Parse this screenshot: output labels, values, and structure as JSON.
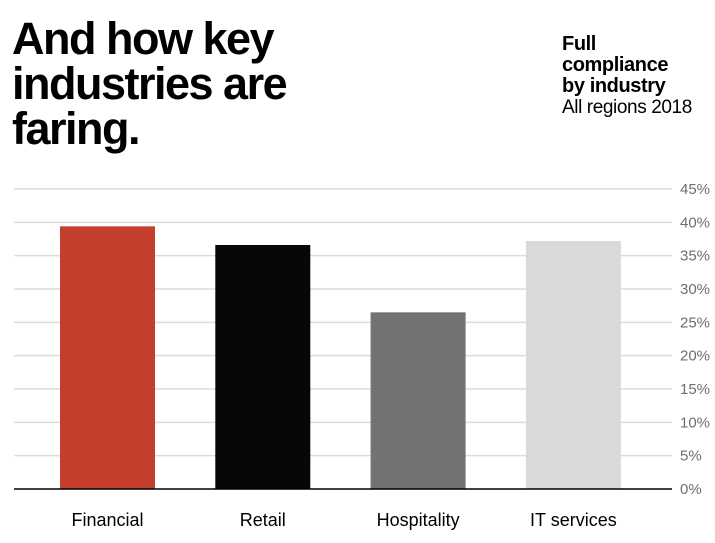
{
  "headline": {
    "lines": [
      "And how key",
      "industries are",
      "faring."
    ]
  },
  "chart_title": {
    "lines": [
      "Full",
      "compliance",
      "by industry"
    ],
    "subtitle": "All regions 2018"
  },
  "chart_data": {
    "type": "bar",
    "title": "Full compliance by industry",
    "subtitle": "All regions 2018",
    "xlabel": "",
    "ylabel": "",
    "categories": [
      "Financial",
      "Retail",
      "Hospitality",
      "IT services"
    ],
    "values": [
      39.4,
      36.6,
      26.5,
      37.2
    ],
    "colors": [
      "#c43e2e",
      "#050708",
      "#717374",
      "#d7d9da"
    ],
    "ylim": [
      0,
      45
    ],
    "yticks": [
      0,
      5,
      10,
      15,
      20,
      25,
      30,
      35,
      40,
      45
    ],
    "ytick_labels": [
      "0%",
      "5%",
      "10%",
      "15%",
      "20%",
      "25%",
      "30%",
      "35%",
      "40%",
      "45%"
    ],
    "y_axis_position": "right",
    "grid": true,
    "legend": "none"
  }
}
